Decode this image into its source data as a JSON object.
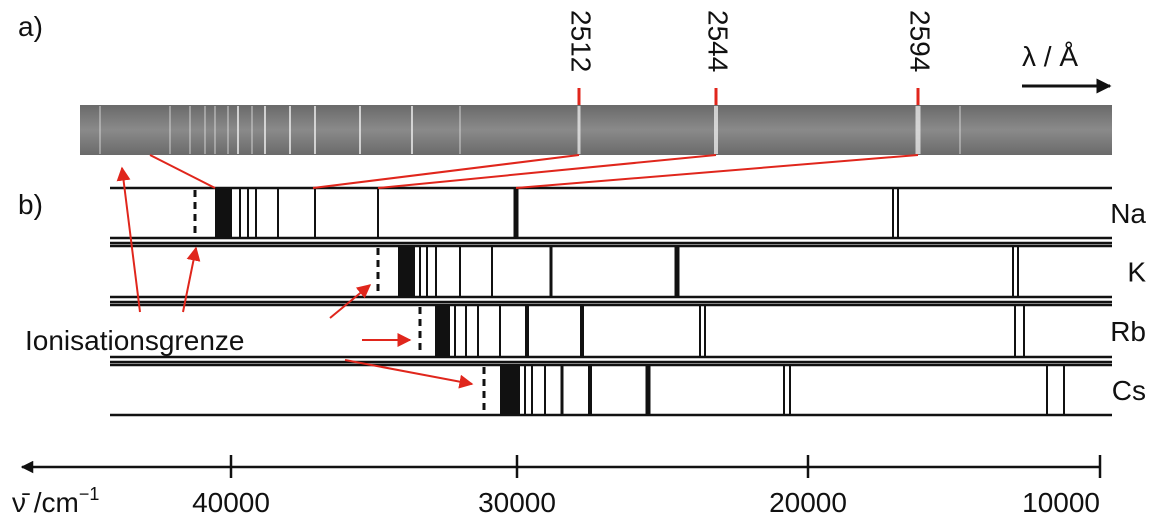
{
  "panel_a": {
    "label": "a)",
    "wavelengths": [
      "2512",
      "2544",
      "2594"
    ],
    "axis_label": "λ / Å"
  },
  "panel_b": {
    "label": "b)",
    "elements": [
      "Na",
      "K",
      "Rb",
      "Cs"
    ],
    "annotation": "Ionisationsgrenze"
  },
  "axis": {
    "label": "ν̄ /cm",
    "label_exponent": "−1",
    "ticks": [
      "40000",
      "30000",
      "20000",
      "10000"
    ]
  }
}
